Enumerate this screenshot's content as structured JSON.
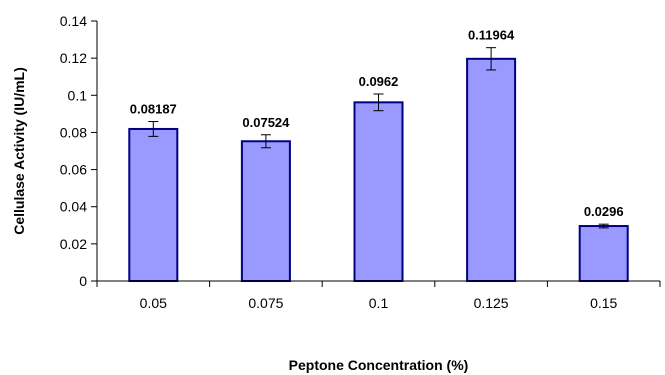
{
  "chart_data": {
    "type": "bar",
    "title": "",
    "xlabel": "Peptone Concentration (%)",
    "ylabel": "Cellulase Activity (IU/mL)",
    "categories": [
      "0.05",
      "0.075",
      "0.1",
      "0.125",
      "0.15"
    ],
    "values": [
      0.08187,
      0.07524,
      0.0962,
      0.11964,
      0.0296
    ],
    "data_labels": [
      "0.08187",
      "0.07524",
      "0.0962",
      "0.11964",
      "0.0296"
    ],
    "errors": [
      0.004,
      0.0035,
      0.0045,
      0.006,
      0.001
    ],
    "ylim": [
      0,
      0.14
    ],
    "yticks": [
      0,
      0.02,
      0.04,
      0.06,
      0.08,
      0.1,
      0.12,
      0.14
    ],
    "ytick_labels": [
      "0",
      "0.02",
      "0.04",
      "0.06",
      "0.08",
      "0.1",
      "0.12",
      "0.14"
    ],
    "grid": false,
    "legend": "none",
    "colors": {
      "bar_fill": "#9999ff",
      "bar_stroke": "#000080",
      "axis": "#000000"
    }
  }
}
